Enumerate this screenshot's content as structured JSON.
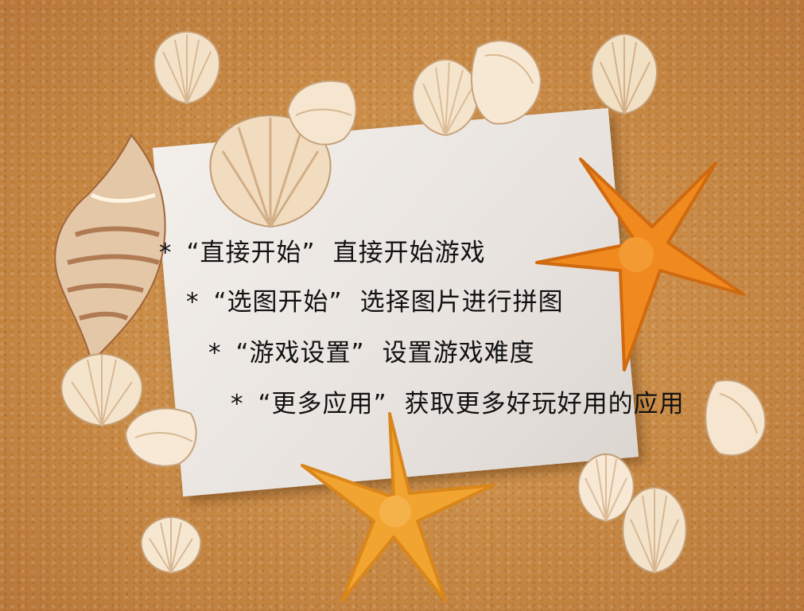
{
  "menu": {
    "items": [
      {
        "bullet": "*",
        "name": "“直接开始”",
        "description": "直接开始游戏"
      },
      {
        "bullet": "*",
        "name": "“选图开始”",
        "description": "选择图片进行拼图"
      },
      {
        "bullet": "*",
        "name": "“游戏设置”",
        "description": "设置游戏难度"
      },
      {
        "bullet": "*",
        "name": "“更多应用”",
        "description": "获取更多好玩好用的应用"
      }
    ]
  },
  "colors": {
    "sand": "#c98a45",
    "paper": "#efebe7",
    "starfish": "#f08a1e",
    "shell": "#f4e2c8",
    "text": "#111111"
  },
  "decor": {
    "background": "sand-texture",
    "card": "paper-card",
    "shells": [
      "scallop-shell",
      "conch-shell"
    ],
    "starfish": [
      "starfish-icon"
    ]
  }
}
